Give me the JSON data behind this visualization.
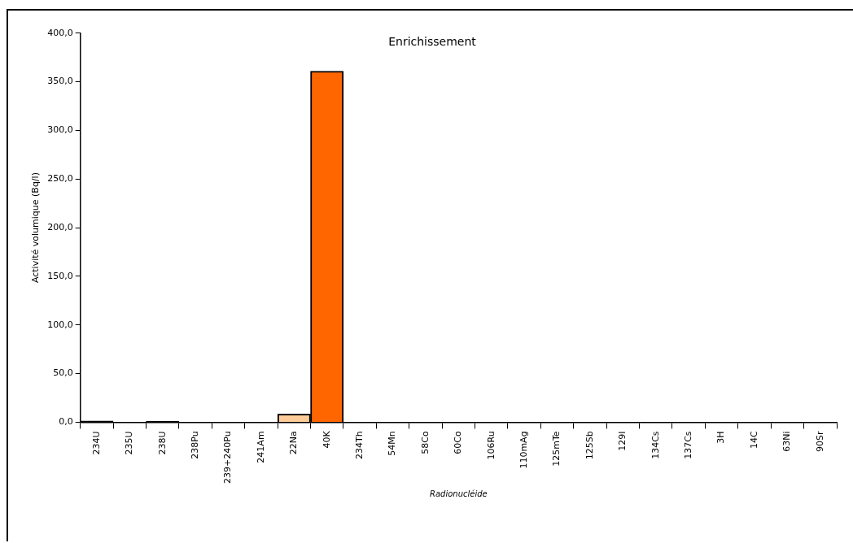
{
  "chart_data": {
    "type": "bar",
    "title": "Enrichissement",
    "xlabel": "Radionucléide",
    "ylabel": "Activité volumique (Bq/l)",
    "categories": [
      "234U",
      "235U",
      "238U",
      "238Pu",
      "239+240Pu",
      "241Am",
      "22Na",
      "40K",
      "234Th",
      "54Mn",
      "58Co",
      "60Co",
      "106Ru",
      "110mAg",
      "125mTe",
      "125Sb",
      "129I",
      "134Cs",
      "137Cs",
      "3H",
      "14C",
      "63Ni",
      "90Sr"
    ],
    "values": [
      1.2,
      null,
      0.8,
      null,
      null,
      null,
      8.5,
      361,
      null,
      null,
      null,
      null,
      null,
      null,
      null,
      null,
      null,
      null,
      null,
      null,
      null,
      null,
      null
    ],
    "colors": [
      "#000000",
      "#000000",
      "#000000",
      "#000000",
      "#000000",
      "#000000",
      "#ffcc99",
      "#ff6600",
      "#000000",
      "#000000",
      "#000000",
      "#000000",
      "#000000",
      "#000000",
      "#000000",
      "#000000",
      "#000000",
      "#000000",
      "#000000",
      "#000000",
      "#000000",
      "#000000",
      "#000000"
    ],
    "ylim": [
      0,
      400
    ],
    "yticks": [
      {
        "value": 0,
        "label": "0,0"
      },
      {
        "value": 50,
        "label": "50,0"
      },
      {
        "value": 100,
        "label": "100,0"
      },
      {
        "value": 150,
        "label": "150,0"
      },
      {
        "value": 200,
        "label": "200,0"
      },
      {
        "value": 250,
        "label": "250,0"
      },
      {
        "value": 300,
        "label": "300,0"
      },
      {
        "value": 350,
        "label": "350,0"
      },
      {
        "value": 400,
        "label": "400,0"
      }
    ],
    "grid": false,
    "legend": false
  }
}
